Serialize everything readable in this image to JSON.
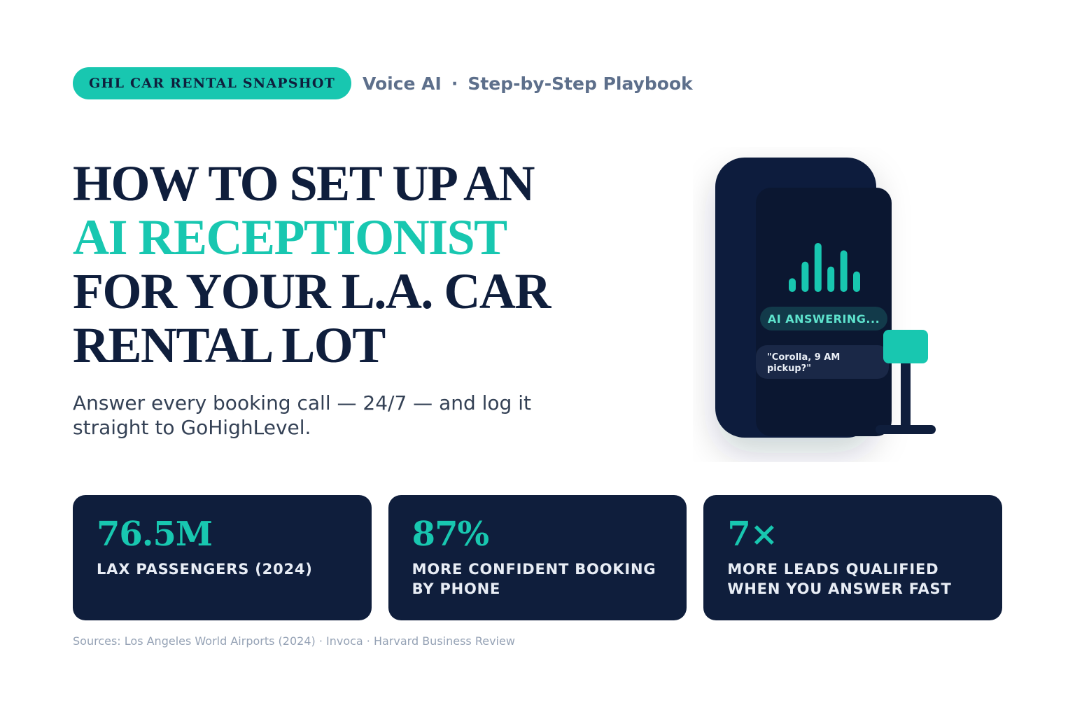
{
  "header": {
    "badge": "GHL CAR RENTAL SNAPSHOT",
    "category": "Voice AI",
    "separator": "·",
    "subtitle": "Step-by-Step Playbook"
  },
  "hero": {
    "title_lines": [
      "HOW TO SET UP AN",
      "AI RECEPTIONIST",
      "FOR YOUR L.A. CAR",
      "RENTAL LOT"
    ],
    "accent_line_index": 1,
    "description": "Answer every booking call — 24/7 — and log it straight to GoHighLevel."
  },
  "illustration": {
    "status": "AI ANSWERING...",
    "transcript_lines": [
      "\"Corolla, 9 AM",
      "pickup?\""
    ],
    "waveform_levels": [
      0.28,
      0.62,
      1.0,
      0.52,
      0.85,
      0.42
    ]
  },
  "stats": [
    {
      "value": "76.5M",
      "label": "LAX PASSENGERS (2024)"
    },
    {
      "value": "87%",
      "label": "MORE CONFIDENT BOOKING BY PHONE"
    },
    {
      "value": "7×",
      "label": "MORE LEADS QUALIFIED WHEN YOU ANSWER FAST"
    }
  ],
  "sources": "Sources: Los Angeles World Airports (2024) · Invoca · Harvard Business Review",
  "colors": {
    "navy": "#0f1e3c",
    "accent": "#18c7b0",
    "muted": "#5d6f8b"
  }
}
